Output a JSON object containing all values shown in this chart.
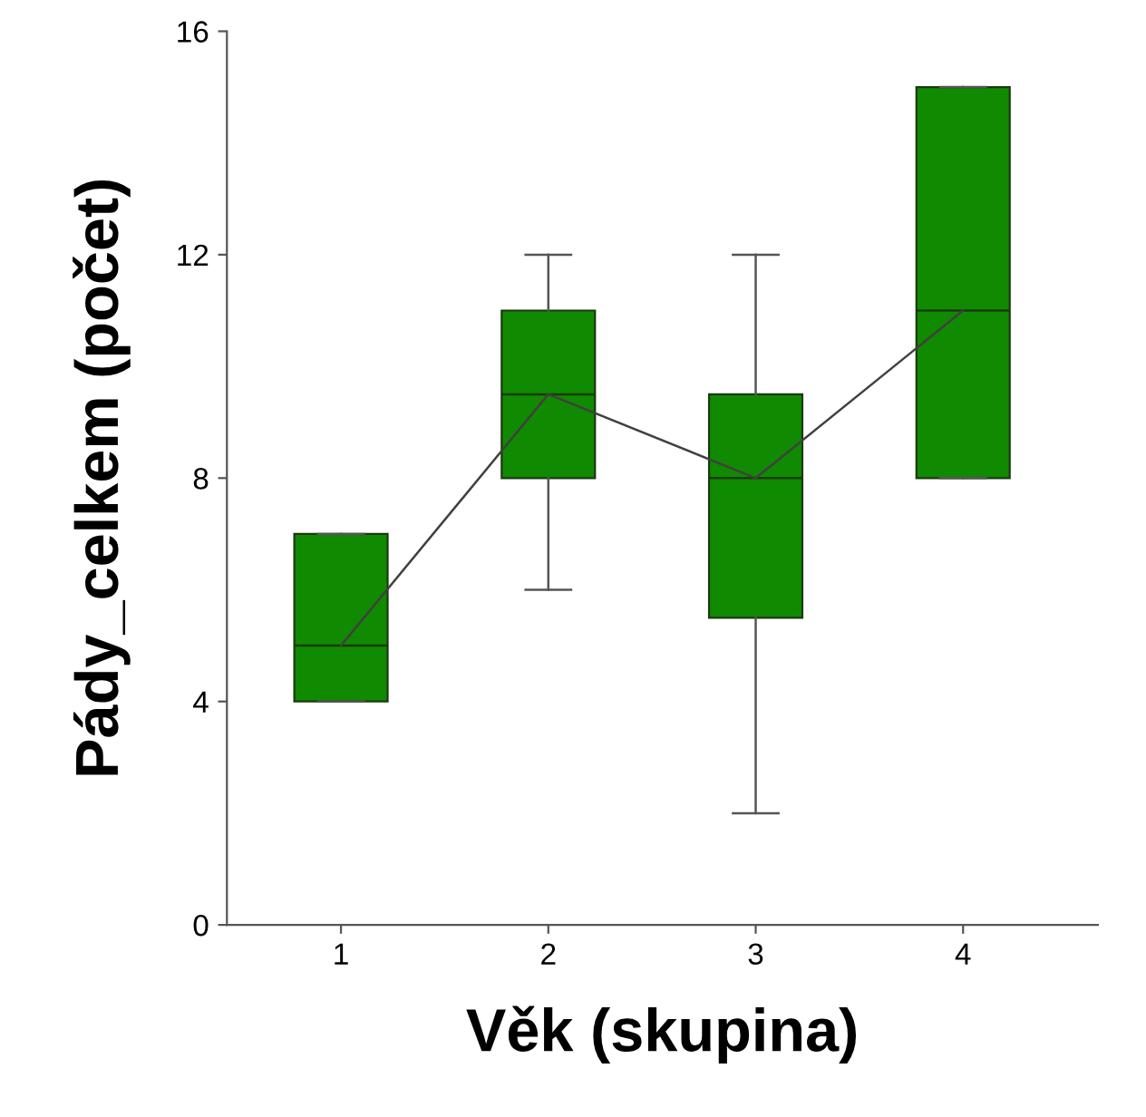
{
  "chart_data": {
    "type": "box",
    "xlabel": "Věk (skupina)",
    "ylabel": "Pády_celkem (počet)",
    "categories": [
      "1",
      "2",
      "3",
      "4"
    ],
    "ylim": [
      0,
      16
    ],
    "yticks": [
      0,
      4,
      8,
      12,
      16
    ],
    "grid": false,
    "series": [
      {
        "color": "#108a00",
        "boxes": [
          {
            "low": 4,
            "q1": 4,
            "median": 5,
            "q3": 7,
            "high": 7
          },
          {
            "low": 6,
            "q1": 8,
            "median": 9.5,
            "q3": 11,
            "high": 12
          },
          {
            "low": 2,
            "q1": 5.5,
            "median": 8,
            "q3": 9.5,
            "high": 12
          },
          {
            "low": 8,
            "q1": 8,
            "median": 11,
            "q3": 15,
            "high": 15
          }
        ]
      },
      {
        "type": "line",
        "color": "#404040",
        "values": [
          5,
          9.5,
          8,
          11
        ]
      }
    ]
  }
}
